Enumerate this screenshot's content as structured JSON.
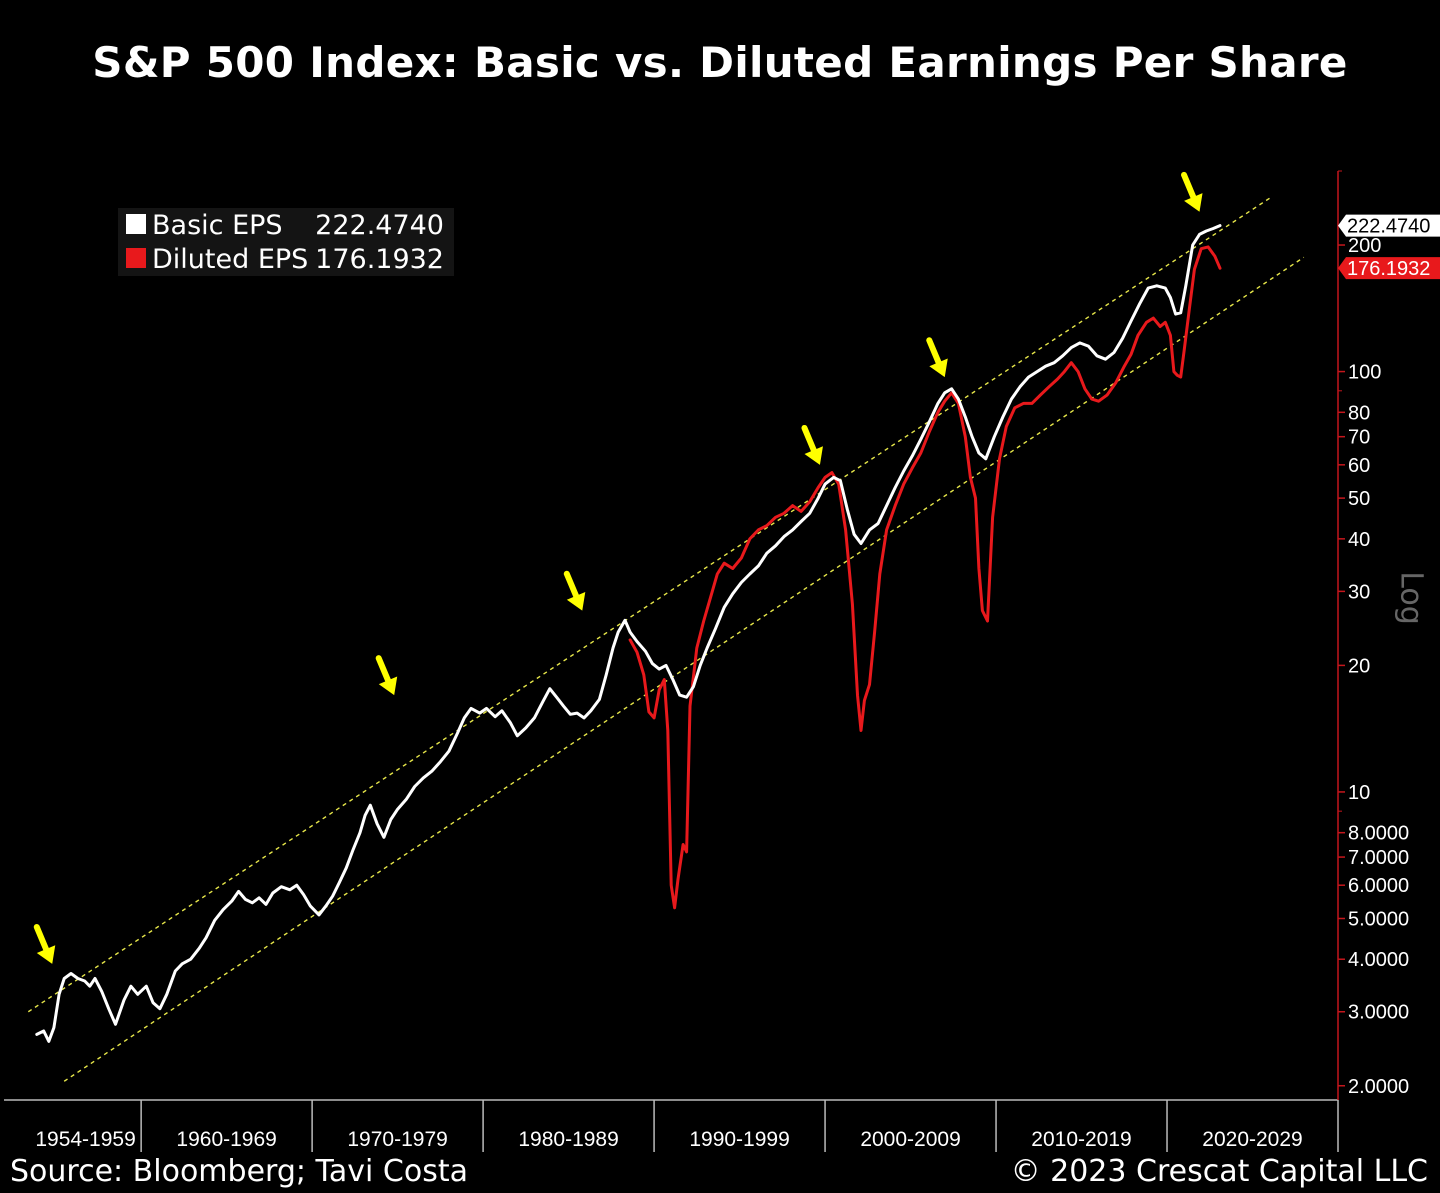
{
  "title": "S&P 500 Index: Basic vs. Diluted Earnings Per Share",
  "footer": {
    "source": "Source: Bloomberg; Tavi Costa",
    "copyright": "© 2023 Crescat Capital LLC"
  },
  "colors": {
    "background": "#000000",
    "basic": "#ffffff",
    "diluted": "#e8191c",
    "axis": "#c4161c",
    "trend": "#e6e64a",
    "arrow": "#ffff00"
  },
  "chart_data": {
    "type": "line",
    "title": "S&P 500 Index: Basic vs. Diluted Earnings Per Share",
    "yscale": "log",
    "scale_label": "Log",
    "ylim": [
      1.85,
      300
    ],
    "xlim": [
      1953.5,
      2030
    ],
    "x_categories": [
      "1954-1959",
      "1960-1969",
      "1970-1979",
      "1980-1989",
      "1990-1999",
      "2000-2009",
      "2010-2019",
      "2020-2029"
    ],
    "y_ticks": [
      {
        "value": 200,
        "label": "200"
      },
      {
        "value": 100,
        "label": "100"
      },
      {
        "value": 80,
        "label": "80"
      },
      {
        "value": 70,
        "label": "70"
      },
      {
        "value": 60,
        "label": "60"
      },
      {
        "value": 50,
        "label": "50"
      },
      {
        "value": 40,
        "label": "40"
      },
      {
        "value": 30,
        "label": "30"
      },
      {
        "value": 20,
        "label": "20"
      },
      {
        "value": 10,
        "label": "10"
      },
      {
        "value": 8,
        "label": "8.0000"
      },
      {
        "value": 7,
        "label": "7.0000"
      },
      {
        "value": 6,
        "label": "6.0000"
      },
      {
        "value": 5,
        "label": "5.0000"
      },
      {
        "value": 4,
        "label": "4.0000"
      },
      {
        "value": 3,
        "label": "3.0000"
      },
      {
        "value": 2,
        "label": "2.0000"
      }
    ],
    "legend": [
      {
        "name": "Basic EPS",
        "value": "222.4740",
        "color": "#ffffff"
      },
      {
        "name": "Diluted EPS",
        "value": "176.1932",
        "color": "#e8191c"
      }
    ],
    "last_value_flags": [
      {
        "label": "222.4740",
        "value": 222.474,
        "style": "white"
      },
      {
        "label": "176.1932",
        "value": 176.1932,
        "style": "red"
      }
    ],
    "series": [
      {
        "name": "Basic EPS",
        "color": "#ffffff",
        "points": [
          [
            1953.9,
            2.65
          ],
          [
            1954.3,
            2.7
          ],
          [
            1954.6,
            2.55
          ],
          [
            1954.9,
            2.75
          ],
          [
            1955.2,
            3.3
          ],
          [
            1955.5,
            3.6
          ],
          [
            1955.9,
            3.7
          ],
          [
            1956.3,
            3.6
          ],
          [
            1956.7,
            3.55
          ],
          [
            1957.0,
            3.45
          ],
          [
            1957.3,
            3.6
          ],
          [
            1957.7,
            3.35
          ],
          [
            1958.1,
            3.05
          ],
          [
            1958.5,
            2.8
          ],
          [
            1959.0,
            3.2
          ],
          [
            1959.4,
            3.45
          ],
          [
            1959.8,
            3.3
          ],
          [
            1960.3,
            3.45
          ],
          [
            1960.7,
            3.15
          ],
          [
            1961.1,
            3.05
          ],
          [
            1961.5,
            3.3
          ],
          [
            1962.0,
            3.75
          ],
          [
            1962.4,
            3.9
          ],
          [
            1962.9,
            4.0
          ],
          [
            1963.4,
            4.25
          ],
          [
            1963.8,
            4.5
          ],
          [
            1964.3,
            4.95
          ],
          [
            1964.8,
            5.25
          ],
          [
            1965.3,
            5.5
          ],
          [
            1965.7,
            5.8
          ],
          [
            1966.1,
            5.55
          ],
          [
            1966.5,
            5.45
          ],
          [
            1966.9,
            5.6
          ],
          [
            1967.3,
            5.4
          ],
          [
            1967.7,
            5.75
          ],
          [
            1968.2,
            5.95
          ],
          [
            1968.7,
            5.85
          ],
          [
            1969.1,
            6.0
          ],
          [
            1969.5,
            5.7
          ],
          [
            1969.9,
            5.35
          ],
          [
            1970.4,
            5.1
          ],
          [
            1970.8,
            5.35
          ],
          [
            1971.2,
            5.65
          ],
          [
            1971.6,
            6.1
          ],
          [
            1972.0,
            6.6
          ],
          [
            1972.4,
            7.3
          ],
          [
            1972.8,
            8.0
          ],
          [
            1973.1,
            8.8
          ],
          [
            1973.4,
            9.3
          ],
          [
            1973.8,
            8.4
          ],
          [
            1974.2,
            7.8
          ],
          [
            1974.6,
            8.6
          ],
          [
            1975.0,
            9.1
          ],
          [
            1975.5,
            9.6
          ],
          [
            1976.0,
            10.3
          ],
          [
            1976.5,
            10.8
          ],
          [
            1977.0,
            11.2
          ],
          [
            1977.5,
            11.8
          ],
          [
            1978.0,
            12.5
          ],
          [
            1978.5,
            13.8
          ],
          [
            1978.9,
            15.0
          ],
          [
            1979.3,
            15.8
          ],
          [
            1979.8,
            15.4
          ],
          [
            1980.2,
            15.8
          ],
          [
            1980.7,
            15.1
          ],
          [
            1981.1,
            15.6
          ],
          [
            1981.6,
            14.6
          ],
          [
            1982.0,
            13.6
          ],
          [
            1982.5,
            14.2
          ],
          [
            1983.0,
            15.0
          ],
          [
            1983.5,
            16.4
          ],
          [
            1983.9,
            17.6
          ],
          [
            1984.3,
            16.8
          ],
          [
            1984.7,
            16.0
          ],
          [
            1985.1,
            15.3
          ],
          [
            1985.5,
            15.4
          ],
          [
            1985.9,
            15.0
          ],
          [
            1986.3,
            15.6
          ],
          [
            1986.8,
            16.6
          ],
          [
            1987.2,
            19.0
          ],
          [
            1987.6,
            22.0
          ],
          [
            1987.9,
            24.0
          ],
          [
            1988.3,
            25.6
          ],
          [
            1988.6,
            24.0
          ],
          [
            1989.0,
            22.8
          ],
          [
            1989.5,
            21.6
          ],
          [
            1989.9,
            20.2
          ],
          [
            1990.3,
            19.6
          ],
          [
            1990.7,
            20.0
          ],
          [
            1991.1,
            18.5
          ],
          [
            1991.5,
            17.0
          ],
          [
            1991.9,
            16.8
          ],
          [
            1992.3,
            17.8
          ],
          [
            1992.7,
            20.0
          ],
          [
            1993.1,
            22.0
          ],
          [
            1993.6,
            24.5
          ],
          [
            1994.1,
            27.5
          ],
          [
            1994.6,
            29.6
          ],
          [
            1995.1,
            31.5
          ],
          [
            1995.6,
            33.0
          ],
          [
            1996.1,
            34.5
          ],
          [
            1996.6,
            37.0
          ],
          [
            1997.1,
            38.5
          ],
          [
            1997.6,
            40.5
          ],
          [
            1998.1,
            42.0
          ],
          [
            1998.6,
            44.0
          ],
          [
            1999.1,
            46.0
          ],
          [
            1999.6,
            50.0
          ],
          [
            2000.0,
            54.0
          ],
          [
            2000.5,
            56.0
          ],
          [
            2000.9,
            55.0
          ],
          [
            2001.3,
            47.0
          ],
          [
            2001.7,
            41.0
          ],
          [
            2002.1,
            39.0
          ],
          [
            2002.6,
            42.0
          ],
          [
            2003.1,
            43.5
          ],
          [
            2003.6,
            48.0
          ],
          [
            2004.1,
            53.0
          ],
          [
            2004.6,
            58.0
          ],
          [
            2005.1,
            63.0
          ],
          [
            2005.6,
            69.0
          ],
          [
            2006.1,
            76.0
          ],
          [
            2006.6,
            84.0
          ],
          [
            2007.0,
            89.0
          ],
          [
            2007.4,
            91.0
          ],
          [
            2007.8,
            86.0
          ],
          [
            2008.2,
            78.0
          ],
          [
            2008.6,
            70.0
          ],
          [
            2009.0,
            64.0
          ],
          [
            2009.4,
            62.0
          ],
          [
            2009.9,
            70.0
          ],
          [
            2010.4,
            78.0
          ],
          [
            2010.9,
            86.0
          ],
          [
            2011.4,
            92.0
          ],
          [
            2011.9,
            97.0
          ],
          [
            2012.4,
            100.0
          ],
          [
            2012.9,
            103.0
          ],
          [
            2013.4,
            105.0
          ],
          [
            2013.9,
            109.0
          ],
          [
            2014.4,
            114.0
          ],
          [
            2014.9,
            117.0
          ],
          [
            2015.4,
            115.0
          ],
          [
            2015.9,
            109.0
          ],
          [
            2016.4,
            107.0
          ],
          [
            2016.9,
            111.0
          ],
          [
            2017.4,
            120.0
          ],
          [
            2017.9,
            132.0
          ],
          [
            2018.4,
            145.0
          ],
          [
            2018.9,
            158.0
          ],
          [
            2019.4,
            160.0
          ],
          [
            2019.9,
            158.0
          ],
          [
            2020.2,
            150.0
          ],
          [
            2020.5,
            137.0
          ],
          [
            2020.8,
            138.0
          ],
          [
            2021.1,
            160.0
          ],
          [
            2021.5,
            200.0
          ],
          [
            2021.9,
            212.0
          ],
          [
            2022.3,
            216.0
          ],
          [
            2022.7,
            219.0
          ],
          [
            2023.1,
            222.474
          ]
        ]
      },
      {
        "name": "Diluted EPS",
        "color": "#e8191c",
        "points": [
          [
            1988.6,
            23.0
          ],
          [
            1989.0,
            21.5
          ],
          [
            1989.4,
            19.0
          ],
          [
            1989.7,
            15.5
          ],
          [
            1990.0,
            15.0
          ],
          [
            1990.3,
            17.5
          ],
          [
            1990.6,
            18.5
          ],
          [
            1990.8,
            14.0
          ],
          [
            1991.0,
            6.0
          ],
          [
            1991.2,
            5.3
          ],
          [
            1991.4,
            6.2
          ],
          [
            1991.7,
            7.5
          ],
          [
            1991.9,
            7.2
          ],
          [
            1992.1,
            16.0
          ],
          [
            1992.5,
            22.0
          ],
          [
            1992.9,
            25.5
          ],
          [
            1993.3,
            29.0
          ],
          [
            1993.7,
            33.0
          ],
          [
            1994.1,
            35.0
          ],
          [
            1994.6,
            34.0
          ],
          [
            1995.1,
            36.0
          ],
          [
            1995.6,
            40.0
          ],
          [
            1996.1,
            42.0
          ],
          [
            1996.6,
            43.0
          ],
          [
            1997.1,
            45.0
          ],
          [
            1997.6,
            46.0
          ],
          [
            1998.1,
            48.0
          ],
          [
            1998.6,
            46.5
          ],
          [
            1999.1,
            49.0
          ],
          [
            1999.6,
            53.0
          ],
          [
            2000.0,
            56.0
          ],
          [
            2000.4,
            57.5
          ],
          [
            2000.8,
            54.0
          ],
          [
            2001.2,
            42.0
          ],
          [
            2001.6,
            28.0
          ],
          [
            2001.9,
            17.0
          ],
          [
            2002.1,
            14.0
          ],
          [
            2002.3,
            16.5
          ],
          [
            2002.6,
            18.0
          ],
          [
            2002.9,
            24.0
          ],
          [
            2003.2,
            33.0
          ],
          [
            2003.6,
            42.0
          ],
          [
            2004.1,
            48.0
          ],
          [
            2004.6,
            54.0
          ],
          [
            2005.1,
            59.0
          ],
          [
            2005.6,
            64.0
          ],
          [
            2006.1,
            72.0
          ],
          [
            2006.6,
            80.0
          ],
          [
            2007.0,
            85.0
          ],
          [
            2007.4,
            89.0
          ],
          [
            2007.8,
            84.0
          ],
          [
            2008.2,
            70.0
          ],
          [
            2008.5,
            56.0
          ],
          [
            2008.8,
            50.0
          ],
          [
            2009.0,
            34.0
          ],
          [
            2009.2,
            27.0
          ],
          [
            2009.5,
            25.5
          ],
          [
            2009.8,
            45.0
          ],
          [
            2010.2,
            62.0
          ],
          [
            2010.6,
            74.0
          ],
          [
            2011.1,
            82.0
          ],
          [
            2011.6,
            84.0
          ],
          [
            2012.1,
            84.0
          ],
          [
            2012.6,
            88.0
          ],
          [
            2013.1,
            92.0
          ],
          [
            2013.6,
            96.0
          ],
          [
            2014.0,
            100.0
          ],
          [
            2014.4,
            105.0
          ],
          [
            2014.8,
            100.0
          ],
          [
            2015.2,
            91.0
          ],
          [
            2015.6,
            86.0
          ],
          [
            2016.0,
            85.0
          ],
          [
            2016.5,
            88.0
          ],
          [
            2017.0,
            94.0
          ],
          [
            2017.5,
            103.0
          ],
          [
            2017.9,
            110.0
          ],
          [
            2018.3,
            122.0
          ],
          [
            2018.8,
            131.0
          ],
          [
            2019.2,
            134.0
          ],
          [
            2019.6,
            128.0
          ],
          [
            2019.9,
            131.0
          ],
          [
            2020.2,
            122.0
          ],
          [
            2020.4,
            100.0
          ],
          [
            2020.6,
            98.0
          ],
          [
            2020.8,
            97.0
          ],
          [
            2021.0,
            112.0
          ],
          [
            2021.3,
            140.0
          ],
          [
            2021.6,
            175.0
          ],
          [
            2022.0,
            196.0
          ],
          [
            2022.4,
            198.0
          ],
          [
            2022.8,
            188.0
          ],
          [
            2023.1,
            176.1932
          ]
        ]
      }
    ],
    "trend_channel": [
      {
        "name": "upper",
        "from": [
          1953.4,
          3.0
        ],
        "to": [
          2026.1,
          260
        ]
      },
      {
        "name": "lower",
        "from": [
          1955.5,
          2.05
        ],
        "to": [
          2028.0,
          187
        ]
      }
    ],
    "arrows": [
      {
        "x": 1954.8,
        "y": 3.9
      },
      {
        "x": 1974.8,
        "y": 17.0
      },
      {
        "x": 1985.8,
        "y": 27.0
      },
      {
        "x": 1999.7,
        "y": 60.0
      },
      {
        "x": 2007.0,
        "y": 97.0
      },
      {
        "x": 2021.9,
        "y": 240.0
      }
    ]
  }
}
